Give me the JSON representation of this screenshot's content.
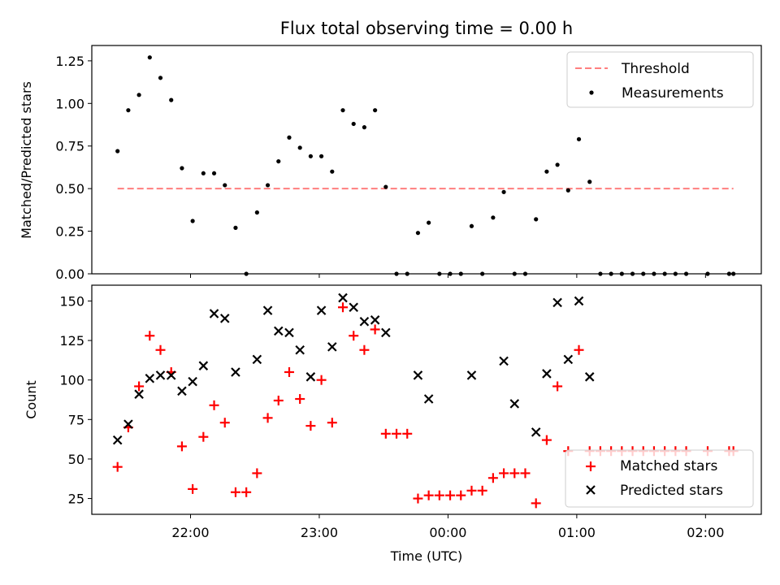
{
  "chart_data": [
    {
      "type": "scatter",
      "title": "Flux total observing time = 0.00 h",
      "xlabel": "",
      "ylabel": "Matched/Predicted stars",
      "ylim": [
        0,
        1.34
      ],
      "xlim": [
        "21:14",
        "02:26"
      ],
      "grid": false,
      "legend": "top-right",
      "threshold": {
        "name": "Threshold",
        "value": 0.5,
        "x_range": [
          "21:26",
          "02:13"
        ],
        "color": "#ff7f7f"
      },
      "yticks": [
        "0.00",
        "0.25",
        "0.50",
        "0.75",
        "1.00",
        "1.25"
      ],
      "xticks": [
        "22:00",
        "23:00",
        "00:00",
        "01:00",
        "02:00"
      ],
      "series": [
        {
          "name": "Measurements",
          "color": "#000000",
          "points": [
            [
              "21:26",
              0.72
            ],
            [
              "21:31",
              0.96
            ],
            [
              "21:36",
              1.05
            ],
            [
              "21:41",
              1.27
            ],
            [
              "21:46",
              1.15
            ],
            [
              "21:51",
              1.02
            ],
            [
              "21:56",
              0.62
            ],
            [
              "22:01",
              0.31
            ],
            [
              "22:06",
              0.59
            ],
            [
              "22:11",
              0.59
            ],
            [
              "22:16",
              0.52
            ],
            [
              "22:21",
              0.27
            ],
            [
              "22:26",
              0.0
            ],
            [
              "22:31",
              0.36
            ],
            [
              "22:36",
              0.52
            ],
            [
              "22:41",
              0.66
            ],
            [
              "22:46",
              0.8
            ],
            [
              "22:51",
              0.74
            ],
            [
              "22:56",
              0.69
            ],
            [
              "23:01",
              0.69
            ],
            [
              "23:06",
              0.6
            ],
            [
              "23:11",
              0.96
            ],
            [
              "23:16",
              0.88
            ],
            [
              "23:21",
              0.86
            ],
            [
              "23:26",
              0.96
            ],
            [
              "23:31",
              0.51
            ],
            [
              "23:36",
              0.0
            ],
            [
              "23:41",
              0.0
            ],
            [
              "23:46",
              0.24
            ],
            [
              "23:51",
              0.3
            ],
            [
              "23:56",
              0.0
            ],
            [
              "00:01",
              0.0
            ],
            [
              "00:06",
              0.0
            ],
            [
              "00:11",
              0.28
            ],
            [
              "00:16",
              0.0
            ],
            [
              "00:21",
              0.33
            ],
            [
              "00:26",
              0.48
            ],
            [
              "00:31",
              0.0
            ],
            [
              "00:36",
              0.0
            ],
            [
              "00:41",
              0.32
            ],
            [
              "00:46",
              0.6
            ],
            [
              "00:51",
              0.64
            ],
            [
              "00:56",
              0.49
            ],
            [
              "01:01",
              0.79
            ],
            [
              "01:06",
              0.54
            ],
            [
              "01:11",
              0.0
            ],
            [
              "01:16",
              0.0
            ],
            [
              "01:21",
              0.0
            ],
            [
              "01:26",
              0.0
            ],
            [
              "01:31",
              0.0
            ],
            [
              "01:36",
              0.0
            ],
            [
              "01:41",
              0.0
            ],
            [
              "01:46",
              0.0
            ],
            [
              "01:51",
              0.0
            ],
            [
              "02:01",
              0.0
            ],
            [
              "02:11",
              0.0
            ],
            [
              "02:13",
              0.0
            ]
          ]
        }
      ]
    },
    {
      "type": "scatter",
      "title": "",
      "xlabel": "Time (UTC)",
      "ylabel": "Count",
      "ylim": [
        15,
        160
      ],
      "xlim": [
        "21:14",
        "02:26"
      ],
      "grid": false,
      "legend": "bottom-right",
      "yticks": [
        "25",
        "50",
        "75",
        "100",
        "125",
        "150"
      ],
      "xticks": [
        "22:00",
        "23:00",
        "00:00",
        "01:00",
        "02:00"
      ],
      "series": [
        {
          "name": "Matched stars",
          "color": "#ff0000",
          "marker": "plus",
          "points": [
            [
              "21:26",
              45
            ],
            [
              "21:31",
              70
            ],
            [
              "21:36",
              96
            ],
            [
              "21:41",
              128
            ],
            [
              "21:46",
              119
            ],
            [
              "21:51",
              105
            ],
            [
              "21:56",
              58
            ],
            [
              "22:01",
              31
            ],
            [
              "22:06",
              64
            ],
            [
              "22:11",
              84
            ],
            [
              "22:16",
              73
            ],
            [
              "22:21",
              29
            ],
            [
              "22:26",
              29
            ],
            [
              "22:31",
              41
            ],
            [
              "22:36",
              76
            ],
            [
              "22:41",
              87
            ],
            [
              "22:46",
              105
            ],
            [
              "22:51",
              88
            ],
            [
              "22:56",
              71
            ],
            [
              "23:01",
              100
            ],
            [
              "23:06",
              73
            ],
            [
              "23:11",
              146
            ],
            [
              "23:16",
              128
            ],
            [
              "23:21",
              119
            ],
            [
              "23:26",
              132
            ],
            [
              "23:31",
              66
            ],
            [
              "23:36",
              66
            ],
            [
              "23:41",
              66
            ],
            [
              "23:46",
              25
            ],
            [
              "23:51",
              27
            ],
            [
              "23:56",
              27
            ],
            [
              "00:01",
              27
            ],
            [
              "00:06",
              27
            ],
            [
              "00:11",
              30
            ],
            [
              "00:16",
              30
            ],
            [
              "00:21",
              38
            ],
            [
              "00:26",
              41
            ],
            [
              "00:31",
              41
            ],
            [
              "00:36",
              41
            ],
            [
              "00:41",
              22
            ],
            [
              "00:46",
              62
            ],
            [
              "00:51",
              96
            ],
            [
              "00:56",
              55
            ],
            [
              "01:01",
              119
            ],
            [
              "01:06",
              55
            ],
            [
              "01:11",
              55
            ],
            [
              "01:16",
              55
            ],
            [
              "01:21",
              55
            ],
            [
              "01:26",
              55
            ],
            [
              "01:31",
              55
            ],
            [
              "01:36",
              55
            ],
            [
              "01:41",
              55
            ],
            [
              "01:46",
              55
            ],
            [
              "01:51",
              55
            ],
            [
              "02:01",
              55
            ],
            [
              "02:11",
              55
            ],
            [
              "02:13",
              55
            ]
          ]
        },
        {
          "name": "Predicted stars",
          "color": "#000000",
          "marker": "x",
          "points": [
            [
              "21:26",
              62
            ],
            [
              "21:31",
              72
            ],
            [
              "21:36",
              91
            ],
            [
              "21:41",
              101
            ],
            [
              "21:46",
              103
            ],
            [
              "21:51",
              103
            ],
            [
              "21:56",
              93
            ],
            [
              "22:01",
              99
            ],
            [
              "22:06",
              109
            ],
            [
              "22:11",
              142
            ],
            [
              "22:16",
              139
            ],
            [
              "22:21",
              105
            ],
            [
              "22:31",
              113
            ],
            [
              "22:36",
              144
            ],
            [
              "22:41",
              131
            ],
            [
              "22:46",
              130
            ],
            [
              "22:51",
              119
            ],
            [
              "22:56",
              102
            ],
            [
              "23:01",
              144
            ],
            [
              "23:06",
              121
            ],
            [
              "23:11",
              152
            ],
            [
              "23:16",
              146
            ],
            [
              "23:21",
              137
            ],
            [
              "23:26",
              138
            ],
            [
              "23:31",
              130
            ],
            [
              "23:46",
              103
            ],
            [
              "23:51",
              88
            ],
            [
              "00:11",
              103
            ],
            [
              "00:26",
              112
            ],
            [
              "00:31",
              85
            ],
            [
              "00:41",
              67
            ],
            [
              "00:46",
              104
            ],
            [
              "00:51",
              149
            ],
            [
              "00:56",
              113
            ],
            [
              "01:01",
              150
            ],
            [
              "01:06",
              102
            ]
          ]
        }
      ]
    }
  ]
}
